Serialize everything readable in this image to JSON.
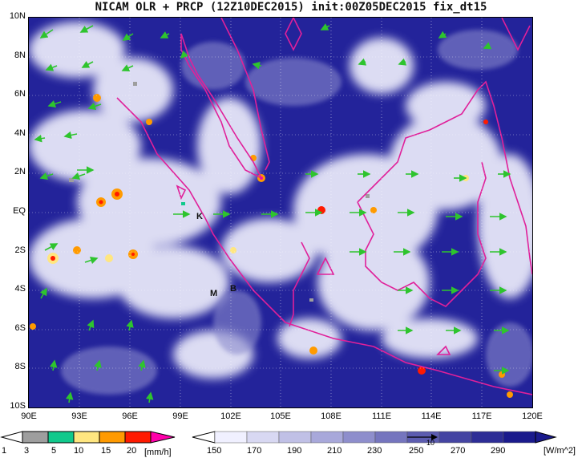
{
  "title": "NICAM OLR + PRCP (12Z10DEC2015) init:00Z05DEC2015 fix_dt15",
  "map": {
    "lat_ticks": [
      "10N",
      "8N",
      "6N",
      "4N",
      "2N",
      "EQ",
      "2S",
      "4S",
      "6S",
      "8S",
      "10S"
    ],
    "lon_ticks": [
      "90E",
      "93E",
      "96E",
      "99E",
      "102E",
      "105E",
      "108E",
      "111E",
      "114E",
      "117E",
      "120E"
    ],
    "markers": [
      {
        "label": "K",
        "lon": 100.5,
        "lat": -0.2
      },
      {
        "label": "M",
        "lon": 100.8,
        "lat": -4.0
      },
      {
        "label": "B",
        "lon": 102.2,
        "lat": -3.8
      }
    ],
    "colors": {
      "olr_dark": "#1a1a8c",
      "olr_light": "#f0f0ff",
      "coast": "#e0209a",
      "wind": "#2ec42e"
    }
  },
  "precip_bar": {
    "labels": [
      "1",
      "3",
      "5",
      "10",
      "15",
      "20"
    ],
    "unit": "[mm/h]",
    "colors": [
      "#9e9e9e",
      "#11c98c",
      "#ffe680",
      "#ff9a00",
      "#ff1a00",
      "#ff00aa"
    ]
  },
  "olr_bar": {
    "labels": [
      "150",
      "170",
      "190",
      "210",
      "230",
      "250",
      "270",
      "290"
    ],
    "unit": "[W/m^2]",
    "ref_arrow_label": "10",
    "colors": [
      "#f0f0ff",
      "#d8d8f2",
      "#c0c0e6",
      "#a8a8da",
      "#8e8ecc",
      "#7575be",
      "#5c5cb0",
      "#4444a2",
      "#2d2d96",
      "#1a1a8c"
    ]
  }
}
